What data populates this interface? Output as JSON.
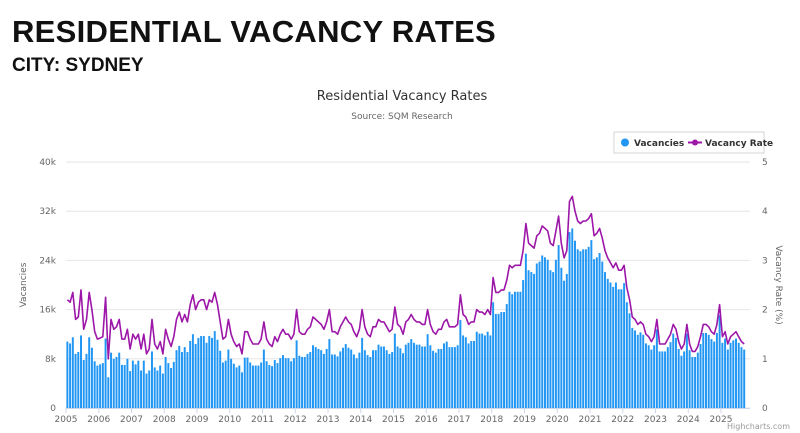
{
  "page": {
    "heading": "RESIDENTIAL VACANCY RATES",
    "subheading": "CITY: SYDNEY"
  },
  "colors": {
    "vacancies": "#2196f3",
    "vacancy_rate": "#9c16a8",
    "grid": "#e6e6e6"
  },
  "credits": "Highcharts.com",
  "chart_data": {
    "type": "bar+line",
    "title": "Residential Vacancy Rates",
    "subtitle": "Source: SQM Research",
    "x_start": "2005-01",
    "x_interval": "month",
    "x_ticks": [
      "2005",
      "2006",
      "2007",
      "2008",
      "2009",
      "2010",
      "2011",
      "2012",
      "2013",
      "2014",
      "2015",
      "2016",
      "2017",
      "2018",
      "2019",
      "2020",
      "2021",
      "2022",
      "2023",
      "2024",
      "2025"
    ],
    "y_left": {
      "label": "Vacancies",
      "range": [
        0,
        40000
      ],
      "ticks": [
        "0",
        "8k",
        "16k",
        "24k",
        "32k",
        "40k"
      ]
    },
    "y_right": {
      "label": "Vacancy Rate (%)",
      "range": [
        0,
        5
      ],
      "ticks": [
        "0",
        "1",
        "2",
        "3",
        "4",
        "5"
      ]
    },
    "grid": true,
    "legend": {
      "placement": "top-right",
      "items": [
        "Vacancies",
        "Vacancy Rate"
      ]
    },
    "series": [
      {
        "name": "Vacancies",
        "type": "column",
        "axis": "left",
        "values": [
          10800,
          10500,
          11500,
          8800,
          9100,
          11800,
          7800,
          8800,
          11500,
          9800,
          7600,
          6900,
          7100,
          7300,
          11300,
          5000,
          9000,
          8000,
          8300,
          9000,
          7000,
          7000,
          8000,
          6000,
          7700,
          7100,
          7700,
          6100,
          7700,
          5600,
          6100,
          9200,
          6600,
          6100,
          6900,
          5600,
          8300,
          7300,
          6500,
          7500,
          9400,
          10100,
          9100,
          9900,
          9100,
          10900,
          12000,
          10400,
          11400,
          11700,
          11700,
          10600,
          11700,
          11400,
          12500,
          11100,
          9300,
          7400,
          7700,
          9500,
          8000,
          7200,
          6600,
          6900,
          5800,
          8200,
          8200,
          7400,
          6900,
          6900,
          6900,
          7400,
          9500,
          7600,
          7000,
          6800,
          7800,
          7300,
          8100,
          8600,
          8100,
          8100,
          7600,
          8100,
          11000,
          8500,
          8300,
          8300,
          8800,
          9100,
          10200,
          9900,
          9600,
          9400,
          8800,
          9600,
          11200,
          8700,
          8700,
          8400,
          9200,
          9800,
          10400,
          9800,
          9500,
          8700,
          8100,
          9000,
          11400,
          9400,
          8600,
          8300,
          9400,
          9400,
          10300,
          10000,
          10000,
          9400,
          8800,
          9100,
          12100,
          10000,
          9700,
          8900,
          10300,
          10600,
          11200,
          10600,
          10300,
          10300,
          10000,
          10000,
          12000,
          10200,
          9300,
          9000,
          9600,
          9600,
          10500,
          10800,
          9900,
          9900,
          9900,
          10200,
          14300,
          11800,
          11500,
          10500,
          10900,
          10900,
          12400,
          12100,
          12100,
          11800,
          12400,
          11800,
          17200,
          15300,
          15300,
          15600,
          15600,
          16900,
          18900,
          18500,
          18900,
          18900,
          18900,
          20800,
          25100,
          22400,
          22100,
          21800,
          23500,
          23800,
          24800,
          24500,
          24100,
          22400,
          22100,
          24100,
          26500,
          22800,
          20700,
          21800,
          28600,
          29200,
          27200,
          25800,
          25500,
          25800,
          25800,
          26200,
          27300,
          24200,
          24500,
          25200,
          23800,
          22100,
          21000,
          20400,
          19700,
          20400,
          19300,
          19300,
          20300,
          17200,
          15400,
          13000,
          12600,
          11900,
          12300,
          11900,
          10500,
          10200,
          9500,
          10200,
          12800,
          9200,
          9200,
          9200,
          9900,
          10700,
          12100,
          11400,
          9600,
          8500,
          9200,
          12100,
          9400,
          8300,
          8300,
          9000,
          10400,
          12200,
          12200,
          11900,
          11200,
          10800,
          12200,
          15100,
          10600,
          11300,
          9500,
          10600,
          11000,
          11300,
          10600,
          9900,
          9500
        ]
      },
      {
        "name": "Vacancy Rate",
        "type": "line",
        "axis": "right",
        "values": [
          2.2,
          2.15,
          2.35,
          1.8,
          1.85,
          2.4,
          1.6,
          1.8,
          2.35,
          2.0,
          1.55,
          1.4,
          1.42,
          1.45,
          2.25,
          1.0,
          1.8,
          1.6,
          1.65,
          1.8,
          1.4,
          1.4,
          1.6,
          1.2,
          1.5,
          1.4,
          1.5,
          1.2,
          1.5,
          1.1,
          1.2,
          1.8,
          1.3,
          1.2,
          1.35,
          1.1,
          1.6,
          1.4,
          1.25,
          1.45,
          1.8,
          1.95,
          1.75,
          1.9,
          1.75,
          2.1,
          2.3,
          2.0,
          2.15,
          2.2,
          2.2,
          2.0,
          2.2,
          2.15,
          2.35,
          2.1,
          1.75,
          1.4,
          1.45,
          1.8,
          1.5,
          1.35,
          1.25,
          1.3,
          1.1,
          1.55,
          1.55,
          1.4,
          1.3,
          1.3,
          1.3,
          1.4,
          1.75,
          1.4,
          1.3,
          1.25,
          1.45,
          1.35,
          1.5,
          1.6,
          1.5,
          1.5,
          1.4,
          1.5,
          2.0,
          1.55,
          1.5,
          1.5,
          1.6,
          1.65,
          1.85,
          1.8,
          1.75,
          1.7,
          1.6,
          1.75,
          2.0,
          1.55,
          1.55,
          1.5,
          1.65,
          1.75,
          1.85,
          1.75,
          1.7,
          1.55,
          1.45,
          1.6,
          2.0,
          1.65,
          1.5,
          1.45,
          1.65,
          1.65,
          1.8,
          1.75,
          1.75,
          1.65,
          1.55,
          1.6,
          2.05,
          1.7,
          1.65,
          1.5,
          1.75,
          1.8,
          1.9,
          1.8,
          1.75,
          1.75,
          1.7,
          1.7,
          2.0,
          1.7,
          1.55,
          1.5,
          1.6,
          1.6,
          1.75,
          1.8,
          1.65,
          1.65,
          1.65,
          1.7,
          2.3,
          1.9,
          1.85,
          1.7,
          1.75,
          1.75,
          2.0,
          1.95,
          1.95,
          1.9,
          2.0,
          1.9,
          2.65,
          2.35,
          2.35,
          2.4,
          2.4,
          2.6,
          2.9,
          2.85,
          2.9,
          2.9,
          2.9,
          3.2,
          3.75,
          3.35,
          3.3,
          3.25,
          3.5,
          3.55,
          3.7,
          3.65,
          3.6,
          3.35,
          3.3,
          3.6,
          3.9,
          3.35,
          3.05,
          3.2,
          4.2,
          4.3,
          4.0,
          3.8,
          3.75,
          3.8,
          3.8,
          3.85,
          3.95,
          3.5,
          3.55,
          3.65,
          3.45,
          3.2,
          3.05,
          2.95,
          2.85,
          2.95,
          2.8,
          2.8,
          2.9,
          2.45,
          2.2,
          1.85,
          1.8,
          1.7,
          1.75,
          1.7,
          1.5,
          1.45,
          1.35,
          1.45,
          1.8,
          1.3,
          1.3,
          1.3,
          1.4,
          1.5,
          1.7,
          1.6,
          1.35,
          1.2,
          1.3,
          1.7,
          1.3,
          1.15,
          1.15,
          1.25,
          1.45,
          1.7,
          1.7,
          1.65,
          1.55,
          1.5,
          1.7,
          2.1,
          1.45,
          1.55,
          1.3,
          1.45,
          1.5,
          1.55,
          1.45,
          1.35,
          1.3
        ]
      }
    ]
  }
}
